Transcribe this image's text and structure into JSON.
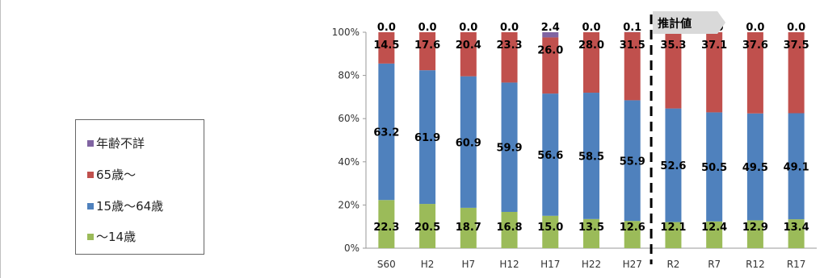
{
  "chart_data": {
    "type": "bar",
    "stacked": true,
    "categories": [
      "S60",
      "H2",
      "H7",
      "H12",
      "H17",
      "H22",
      "H27",
      "R2",
      "R7",
      "R12",
      "R17"
    ],
    "series": [
      {
        "name": "〜14歳",
        "color": "#9bbb59",
        "values": [
          22.3,
          20.5,
          18.7,
          16.8,
          15.0,
          13.5,
          12.6,
          12.1,
          12.4,
          12.9,
          13.4
        ]
      },
      {
        "name": "15歳〜64歳",
        "color": "#4f81bd",
        "values": [
          63.2,
          61.9,
          60.9,
          59.9,
          56.6,
          58.5,
          55.9,
          52.6,
          50.5,
          49.5,
          49.1
        ]
      },
      {
        "name": "65歳〜",
        "color": "#c0504d",
        "values": [
          14.5,
          17.6,
          20.4,
          23.3,
          26.0,
          28.0,
          31.5,
          35.3,
          37.1,
          37.6,
          37.5
        ]
      },
      {
        "name": "年齢不詳",
        "color": "#8064a2",
        "values": [
          0.0,
          0.0,
          0.0,
          0.0,
          2.4,
          0.0,
          0.1,
          0.0,
          0.0,
          0.0,
          0.0
        ]
      }
    ],
    "yticks": [
      "0%",
      "20%",
      "40%",
      "60%",
      "80%",
      "100%"
    ],
    "ylim": [
      0,
      100
    ],
    "estimate_label": "推計値",
    "estimate_start": "R2"
  },
  "legend": [
    "年齢不詳",
    "65歳〜",
    "15歳〜64歳",
    "〜14歳"
  ]
}
